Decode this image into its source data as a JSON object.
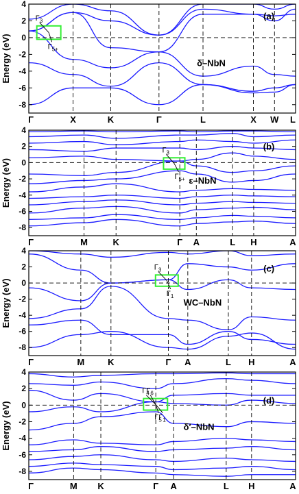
{
  "figure": {
    "ylabel": "Energy (eV)",
    "fermi_level": 0
  },
  "chart_data": [
    {
      "type": "line",
      "panel_tag": "(a)",
      "material": "δ–NbN",
      "ylim": [
        -9,
        4
      ],
      "yticks": [
        4,
        2,
        0,
        -2,
        -4,
        -6,
        -8
      ],
      "kpath": [
        "Γ",
        "X",
        "K",
        "Γ",
        "L",
        "X",
        "W",
        "L"
      ],
      "kpos": [
        0,
        0.166,
        0.307,
        0.488,
        0.653,
        0.842,
        0.921,
        1.0
      ],
      "annotations": [
        "Γ3",
        "Γ5+"
      ],
      "series": [
        {
          "x": [
            0,
            0.166,
            0.307,
            0.488,
            0.653,
            0.842,
            0.921,
            1.0
          ],
          "values": [
            -8.0,
            -6.0,
            -6.0,
            -8.0,
            -5.6,
            -6.6,
            -6.5,
            -5.6
          ]
        },
        {
          "x": [
            0,
            0.166,
            0.307,
            0.488,
            0.653,
            0.842,
            0.921,
            1.0
          ],
          "values": [
            -3.0,
            -4.4,
            -5.8,
            -3.0,
            -5.6,
            -6.4,
            -6.0,
            -5.6
          ]
        },
        {
          "x": [
            0,
            0.166,
            0.307,
            0.488,
            0.653,
            0.842,
            0.921,
            1.0
          ],
          "values": [
            0.8,
            -2.6,
            -3.6,
            -1.7,
            -4.6,
            -3.4,
            -4.4,
            -4.6
          ]
        },
        {
          "x": [
            0,
            0.166,
            0.307,
            0.488,
            0.653,
            0.842,
            0.921,
            1.0
          ],
          "values": [
            0.8,
            3.0,
            -1.2,
            -1.7,
            2.8,
            2.8,
            2.6,
            2.8
          ]
        },
        {
          "x": [
            0,
            0.166,
            0.307,
            0.488,
            0.653,
            0.842,
            0.921,
            1.0
          ],
          "values": [
            0.8,
            3.0,
            2.0,
            0.3,
            3.4,
            2.8,
            2.0,
            3.4
          ]
        },
        {
          "x": [
            0,
            0.166,
            0.307,
            0.488,
            0.653,
            0.842,
            0.921,
            1.0
          ],
          "values": [
            2.2,
            4.0,
            3.2,
            0.3,
            4.0,
            4.0,
            3.4,
            4.0
          ]
        }
      ]
    },
    {
      "type": "line",
      "panel_tag": "(b)",
      "material": "ε–NbN",
      "ylim": [
        -9,
        4
      ],
      "yticks": [
        4,
        2,
        0,
        -2,
        -4,
        -6,
        -8
      ],
      "kpath": [
        "Γ",
        "M",
        "K",
        "Γ",
        "A",
        "L",
        "H",
        "A"
      ],
      "kpos": [
        0,
        0.207,
        0.327,
        0.566,
        0.628,
        0.764,
        0.843,
        1.0
      ],
      "annotations": [
        "Γ3",
        "Γ5+"
      ],
      "series": [
        {
          "x": [
            0,
            0.207,
            0.327,
            0.566,
            0.628,
            0.764,
            0.843,
            1.0
          ],
          "values": [
            -7.8,
            -7.4,
            -7.0,
            -7.8,
            -7.5,
            -7.3,
            -7.2,
            -7.5
          ]
        },
        {
          "x": [
            0,
            0.207,
            0.327,
            0.566,
            0.628,
            0.764,
            0.843,
            1.0
          ],
          "values": [
            -7.0,
            -6.8,
            -6.4,
            -7.0,
            -6.8,
            -6.5,
            -6.6,
            -6.8
          ]
        },
        {
          "x": [
            0,
            0.207,
            0.327,
            0.566,
            0.628,
            0.764,
            0.843,
            1.0
          ],
          "values": [
            -6.2,
            -5.6,
            -5.4,
            -6.2,
            -5.8,
            -5.6,
            -5.5,
            -5.8
          ]
        },
        {
          "x": [
            0,
            0.207,
            0.327,
            0.566,
            0.628,
            0.764,
            0.843,
            1.0
          ],
          "values": [
            -5.2,
            -4.8,
            -4.6,
            -5.2,
            -5.0,
            -4.8,
            -4.9,
            -5.0
          ]
        },
        {
          "x": [
            0,
            0.207,
            0.327,
            0.566,
            0.628,
            0.764,
            0.843,
            1.0
          ],
          "values": [
            -4.4,
            -4.2,
            -4.0,
            -4.4,
            -4.2,
            -4.0,
            -4.1,
            -4.2
          ]
        },
        {
          "x": [
            0,
            0.207,
            0.327,
            0.566,
            0.628,
            0.764,
            0.843,
            1.0
          ],
          "values": [
            -3.6,
            -3.0,
            -2.6,
            -3.6,
            -3.4,
            -3.2,
            -3.3,
            -3.4
          ]
        },
        {
          "x": [
            0,
            0.207,
            0.327,
            0.566,
            0.628,
            0.764,
            0.843,
            1.0
          ],
          "values": [
            -2.6,
            -2.2,
            -2.0,
            -1.0,
            -1.4,
            -2.4,
            -2.2,
            -1.4
          ]
        },
        {
          "x": [
            0,
            0.207,
            0.327,
            0.566,
            0.628,
            0.764,
            0.843,
            1.0
          ],
          "values": [
            -1.4,
            -1.6,
            -1.2,
            0.2,
            -0.4,
            -1.2,
            -1.0,
            -0.4
          ]
        },
        {
          "x": [
            0,
            0.207,
            0.327,
            0.566,
            0.628,
            0.764,
            0.843,
            1.0
          ],
          "values": [
            0.6,
            0.8,
            0.4,
            0.2,
            0.4,
            1.2,
            0.8,
            0.4
          ]
        },
        {
          "x": [
            0,
            0.207,
            0.327,
            0.566,
            0.628,
            0.764,
            0.843,
            1.0
          ],
          "values": [
            1.6,
            1.4,
            1.8,
            1.8,
            1.6,
            2.0,
            1.8,
            1.6
          ]
        },
        {
          "x": [
            0,
            0.207,
            0.327,
            0.566,
            0.628,
            0.764,
            0.843,
            1.0
          ],
          "values": [
            2.4,
            2.6,
            2.2,
            2.6,
            2.8,
            2.6,
            2.4,
            2.8
          ]
        },
        {
          "x": [
            0,
            0.207,
            0.327,
            0.566,
            0.628,
            0.764,
            0.843,
            1.0
          ],
          "values": [
            3.2,
            3.4,
            3.0,
            3.4,
            3.4,
            3.6,
            3.2,
            3.4
          ]
        },
        {
          "x": [
            0,
            0.207,
            0.327,
            0.566,
            0.628,
            0.764,
            0.843,
            1.0
          ],
          "values": [
            3.8,
            3.9,
            3.8,
            3.9,
            3.8,
            3.9,
            3.9,
            3.8
          ]
        }
      ]
    },
    {
      "type": "line",
      "panel_tag": "(c)",
      "material": "WC–NbN",
      "ylim": [
        -9,
        4
      ],
      "yticks": [
        4,
        2,
        0,
        -2,
        -4,
        -6,
        -8
      ],
      "kpath": [
        "Γ",
        "M",
        "K",
        "Γ",
        "A",
        "L",
        "H",
        "A"
      ],
      "kpos": [
        0,
        0.195,
        0.308,
        0.523,
        0.596,
        0.748,
        0.835,
        1.0
      ],
      "annotations": [
        "Γ3",
        "Γ1"
      ],
      "series": [
        {
          "x": [
            0,
            0.195,
            0.308,
            0.523,
            0.596,
            0.748,
            0.835,
            1.0
          ],
          "values": [
            -8.0,
            -6.4,
            -6.0,
            -8.0,
            -8.2,
            -6.6,
            -6.2,
            -8.2
          ]
        },
        {
          "x": [
            0,
            0.195,
            0.308,
            0.523,
            0.596,
            0.748,
            0.835,
            1.0
          ],
          "values": [
            -5.2,
            -4.6,
            -6.4,
            -6.4,
            -7.6,
            -6.0,
            -7.0,
            -7.6
          ]
        },
        {
          "x": [
            0,
            0.195,
            0.308,
            0.523,
            0.596,
            0.748,
            0.835,
            1.0
          ],
          "values": [
            -4.4,
            -3.2,
            -0.4,
            -4.4,
            -4.6,
            -5.8,
            -4.2,
            -4.6
          ]
        },
        {
          "x": [
            0,
            0.195,
            0.308,
            0.523,
            0.596,
            0.748,
            0.835,
            1.0
          ],
          "values": [
            -0.6,
            -2.2,
            0.0,
            0.4,
            -0.8,
            0.4,
            -0.6,
            -0.8
          ]
        },
        {
          "x": [
            0,
            0.195,
            0.308,
            0.523,
            0.596,
            0.748,
            0.835,
            1.0
          ],
          "values": [
            3.6,
            1.6,
            0.0,
            0.4,
            2.4,
            2.0,
            1.6,
            2.4
          ]
        },
        {
          "x": [
            0,
            0.195,
            0.308,
            0.523,
            0.596,
            0.748,
            0.835,
            1.0
          ],
          "values": [
            4.0,
            3.6,
            3.2,
            3.8,
            3.6,
            4.0,
            3.4,
            3.6
          ]
        }
      ]
    },
    {
      "type": "line",
      "panel_tag": "(d)",
      "material": "δ′–NbN",
      "ylim": [
        -9,
        4
      ],
      "yticks": [
        4,
        2,
        0,
        -2,
        -4,
        -6,
        -8
      ],
      "kpath": [
        "Γ",
        "M",
        "K",
        "Γ",
        "A",
        "L",
        "H",
        "A"
      ],
      "kpos": [
        0,
        0.168,
        0.27,
        0.476,
        0.543,
        0.74,
        0.835,
        1.0
      ],
      "annotations": [
        "Γ4",
        "Γ5",
        "Γ6",
        "Γ1"
      ],
      "series": [
        {
          "x": [
            0,
            0.168,
            0.27,
            0.476,
            0.543,
            0.74,
            0.835,
            1.0
          ],
          "values": [
            -8.2,
            -7.6,
            -7.8,
            -8.2,
            -8.4,
            -8.6,
            -8.4,
            -8.4
          ]
        },
        {
          "x": [
            0,
            0.168,
            0.27,
            0.476,
            0.543,
            0.74,
            0.835,
            1.0
          ],
          "values": [
            -7.4,
            -7.0,
            -7.2,
            -7.4,
            -7.8,
            -7.6,
            -7.4,
            -7.8
          ]
        },
        {
          "x": [
            0,
            0.168,
            0.27,
            0.476,
            0.543,
            0.74,
            0.835,
            1.0
          ],
          "values": [
            -6.6,
            -6.2,
            -6.0,
            -6.6,
            -6.8,
            -6.4,
            -6.6,
            -6.8
          ]
        },
        {
          "x": [
            0,
            0.168,
            0.27,
            0.476,
            0.543,
            0.74,
            0.835,
            1.0
          ],
          "values": [
            -5.6,
            -5.4,
            -5.0,
            -5.6,
            -5.4,
            -5.2,
            -5.0,
            -5.4
          ]
        },
        {
          "x": [
            0,
            0.168,
            0.27,
            0.476,
            0.543,
            0.74,
            0.835,
            1.0
          ],
          "values": [
            -4.8,
            -4.2,
            -4.6,
            -4.8,
            -4.4,
            -4.0,
            -4.2,
            -4.4
          ]
        },
        {
          "x": [
            0,
            0.168,
            0.27,
            0.476,
            0.543,
            0.74,
            0.835,
            1.0
          ],
          "values": [
            -3.0,
            -2.2,
            -1.4,
            -0.8,
            -2.2,
            -2.6,
            -2.0,
            -2.2
          ]
        },
        {
          "x": [
            0,
            0.168,
            0.27,
            0.476,
            0.543,
            0.74,
            0.835,
            1.0
          ],
          "values": [
            -0.8,
            -0.2,
            -0.8,
            0.4,
            0.2,
            0.0,
            0.6,
            0.2
          ]
        },
        {
          "x": [
            0,
            0.168,
            0.27,
            0.476,
            0.543,
            0.74,
            0.835,
            1.0
          ],
          "values": [
            1.8,
            0.6,
            1.4,
            0.4,
            1.2,
            1.4,
            1.2,
            1.2
          ]
        },
        {
          "x": [
            0,
            0.168,
            0.27,
            0.476,
            0.543,
            0.74,
            0.835,
            1.0
          ],
          "values": [
            2.6,
            2.4,
            2.8,
            2.0,
            2.6,
            3.2,
            3.0,
            2.6
          ]
        },
        {
          "x": [
            0,
            0.168,
            0.27,
            0.476,
            0.543,
            0.74,
            0.835,
            1.0
          ],
          "values": [
            3.8,
            3.4,
            3.6,
            3.8,
            3.8,
            3.9,
            3.8,
            3.8
          ]
        }
      ]
    }
  ]
}
